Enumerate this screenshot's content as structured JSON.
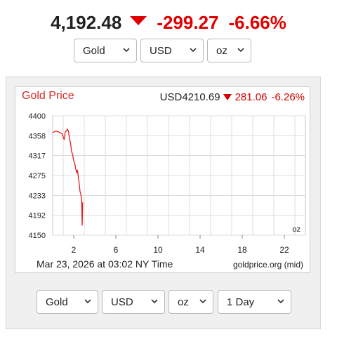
{
  "top": {
    "price": "4,192.48",
    "change": "-299.27",
    "change_pct": "-6.66%",
    "direction_icon": "down-triangle-icon",
    "down_color": "#e00000"
  },
  "top_selectors": {
    "metal": "Gold",
    "currency": "USD",
    "unit": "oz"
  },
  "chart_header": {
    "title": "Gold Price",
    "quote_price": "USD4210.69",
    "quote_change": "281.06",
    "quote_change_pct": "-6.26%"
  },
  "chart_data": {
    "type": "line",
    "title": "Gold Price",
    "xlabel": "",
    "ylabel": "",
    "unit_label": "oz",
    "x_ticks": [
      "2",
      "6",
      "10",
      "14",
      "18",
      "22"
    ],
    "y_ticks": [
      "4400",
      "4358",
      "4317",
      "4275",
      "4233",
      "4192",
      "4150"
    ],
    "xlim": [
      0,
      24
    ],
    "ylim": [
      4150,
      4400
    ],
    "grid": true,
    "line_color": "#e02020",
    "series": [
      {
        "x": [
          0.0,
          0.3,
          0.6,
          0.9,
          1.1,
          1.2,
          1.3,
          1.4,
          1.5,
          1.6,
          1.7,
          1.8,
          1.9,
          2.0,
          2.1,
          2.2,
          2.3,
          2.35,
          2.4,
          2.45,
          2.5,
          2.55,
          2.6,
          2.65,
          2.7,
          2.75,
          2.8,
          2.85
        ],
        "y": [
          4365,
          4368,
          4366,
          4362,
          4350,
          4367,
          4368,
          4372,
          4368,
          4352,
          4342,
          4325,
          4318,
          4306,
          4300,
          4288,
          4280,
          4287,
          4279,
          4268,
          4262,
          4251,
          4241,
          4238,
          4231,
          4221,
          4170,
          4219
        ]
      }
    ]
  },
  "chart_footer": {
    "timestamp": "Mar 23, 2026 at 03:02 NY Time",
    "source": "goldprice.org (mid)"
  },
  "bottom_selectors": {
    "metal": "Gold",
    "currency": "USD",
    "unit": "oz",
    "range": "1 Day"
  }
}
